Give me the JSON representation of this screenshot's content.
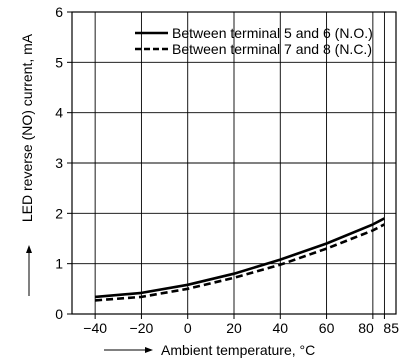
{
  "chart_data": {
    "type": "line",
    "xlabel": "Ambient temperature, °C",
    "ylabel": "LED reverse (NO) current, mA",
    "xlim": [
      -50,
      90
    ],
    "ylim": [
      0,
      6
    ],
    "x_ticks": [
      -40,
      -20,
      0,
      20,
      40,
      60,
      80,
      85
    ],
    "x_tick_labels": [
      "−40",
      "−20",
      "0",
      "20",
      "40",
      "60",
      "80",
      "85"
    ],
    "y_ticks": [
      0,
      1,
      2,
      3,
      4,
      5,
      6
    ],
    "y_tick_labels": [
      "0",
      "1",
      "2",
      "3",
      "4",
      "5",
      "6"
    ],
    "grid": true,
    "legend_position": "top-right",
    "series": [
      {
        "name": "Between terminal 5 and 6 (N.O.)",
        "style": "solid",
        "color": "#000000",
        "x": [
          -40,
          -20,
          0,
          20,
          40,
          60,
          80,
          85
        ],
        "y": [
          0.34,
          0.42,
          0.58,
          0.8,
          1.08,
          1.4,
          1.78,
          1.9
        ]
      },
      {
        "name": "Between terminal 7 and 8 (N.C.)",
        "style": "dashed",
        "color": "#000000",
        "x": [
          -40,
          -20,
          0,
          20,
          40,
          60,
          80,
          85
        ],
        "y": [
          0.27,
          0.34,
          0.5,
          0.72,
          0.98,
          1.3,
          1.66,
          1.78
        ]
      }
    ]
  }
}
